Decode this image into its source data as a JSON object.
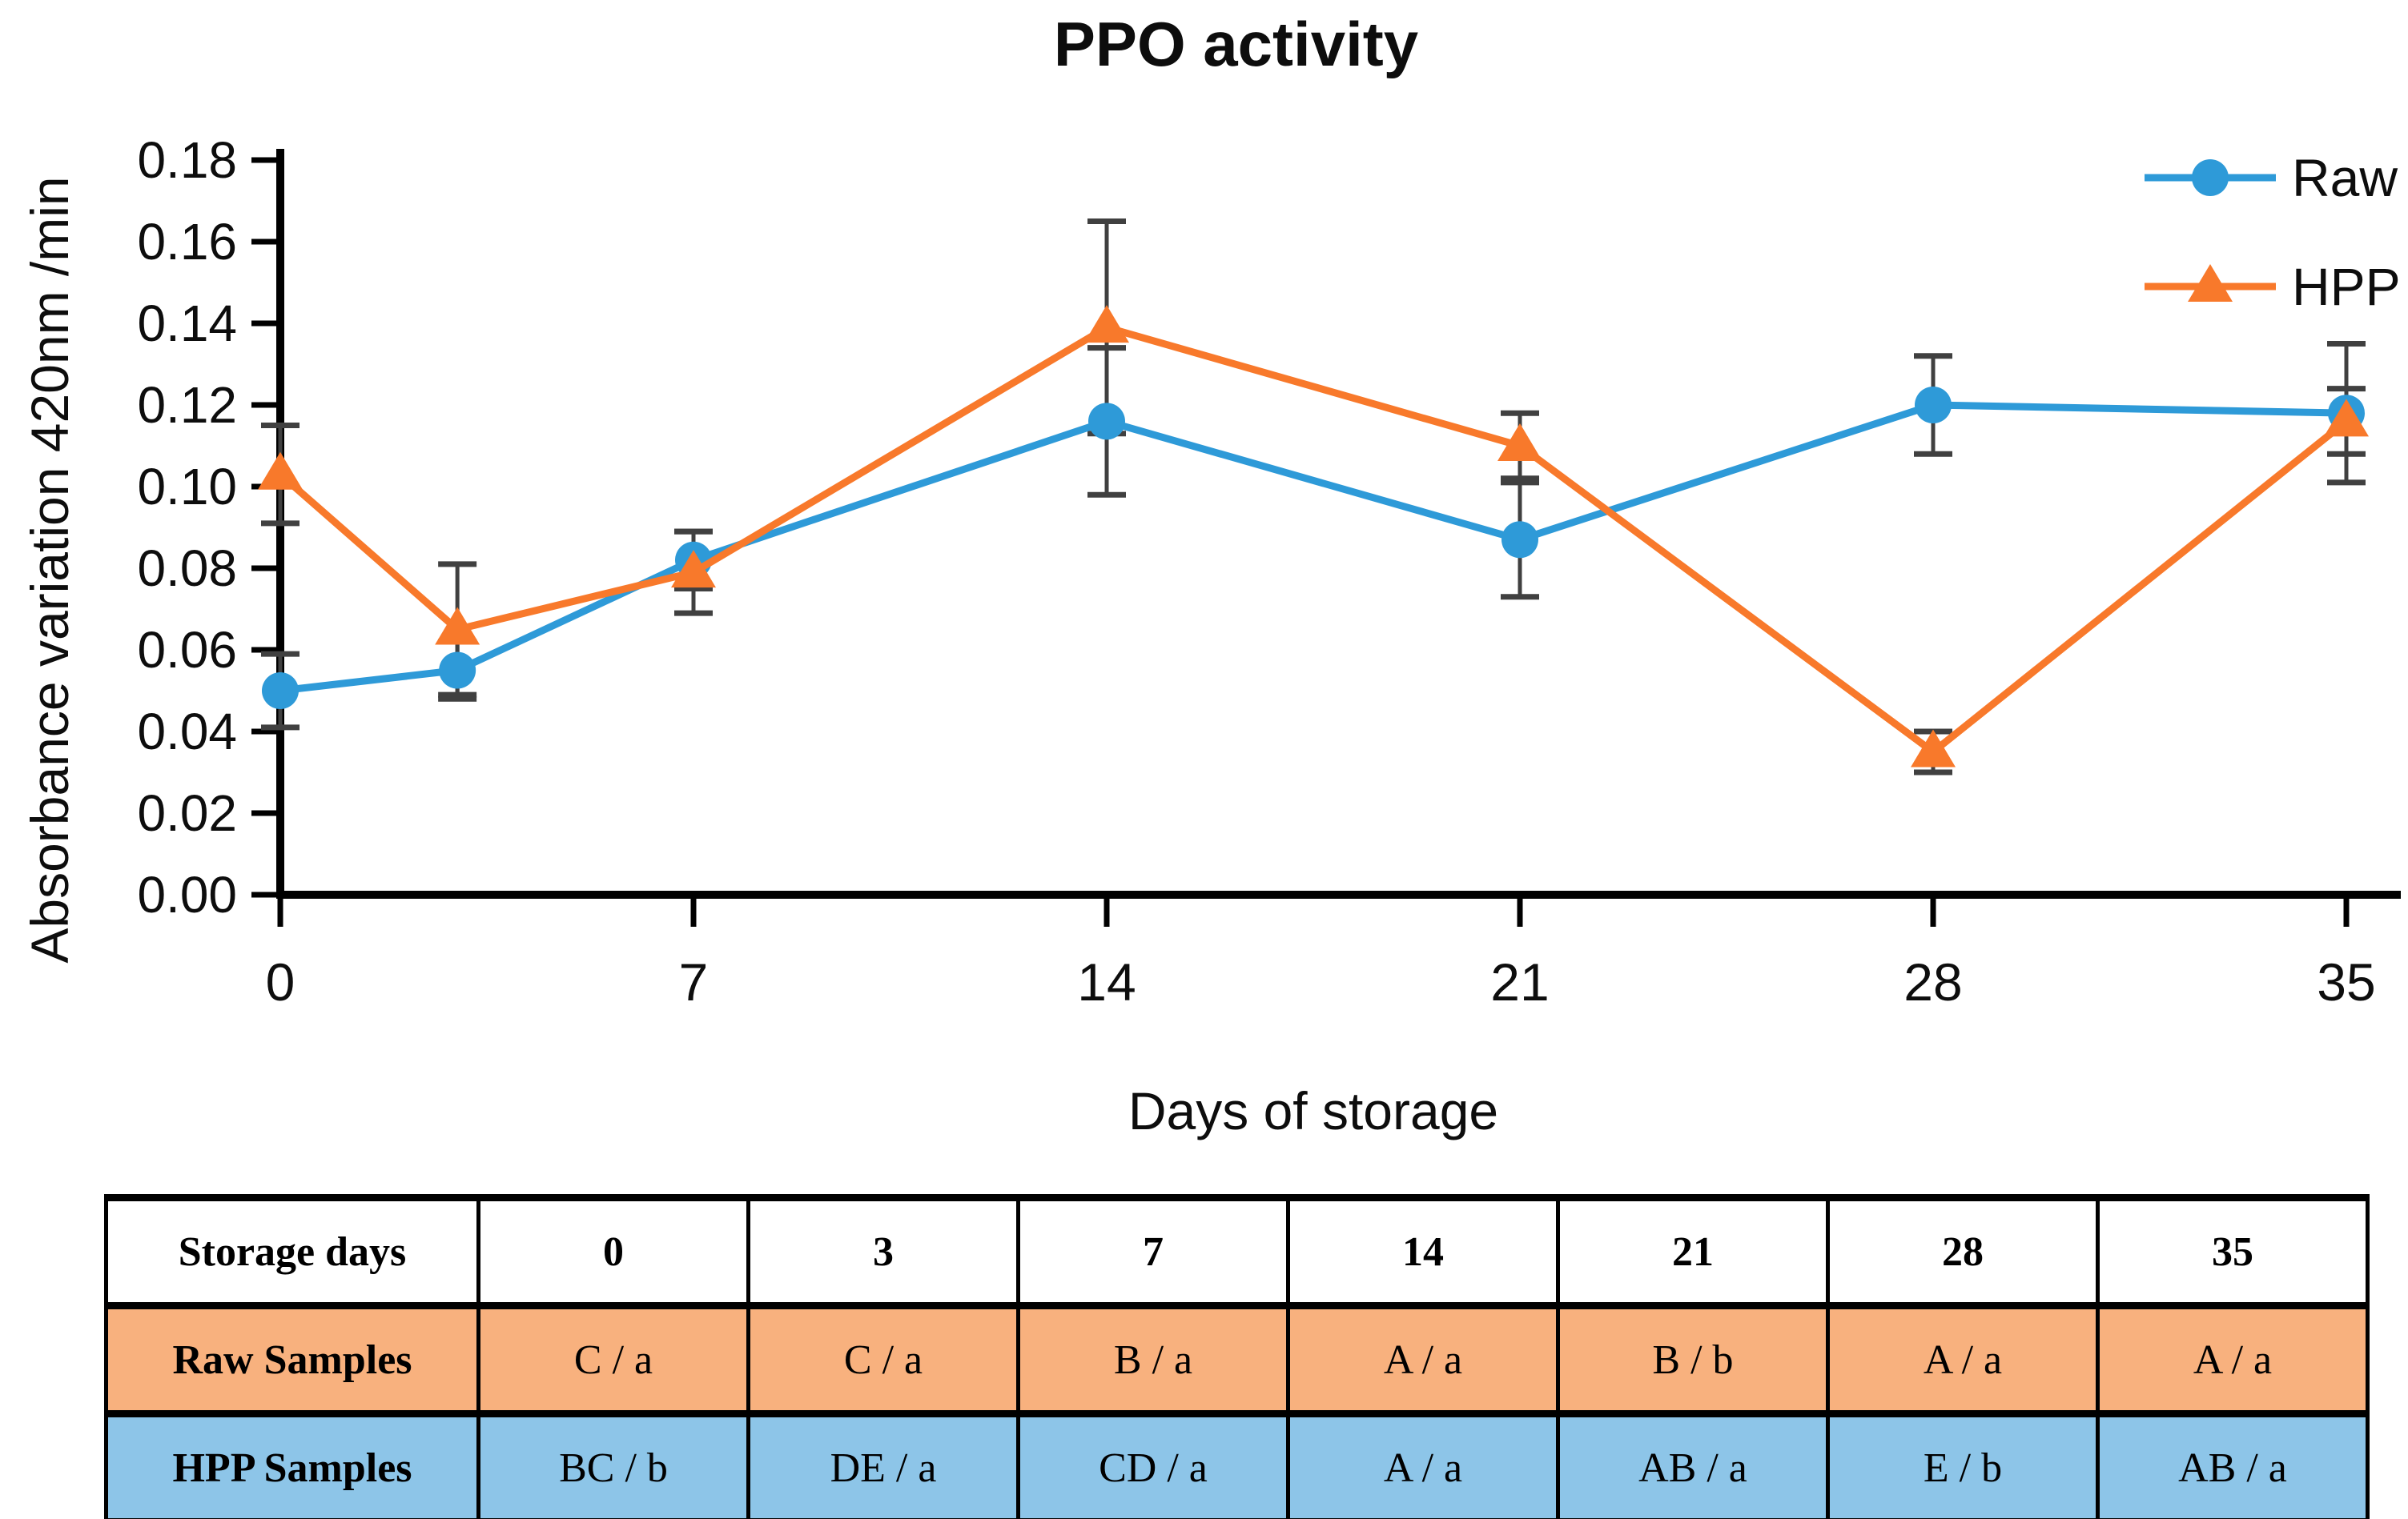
{
  "title": "PPO activity",
  "axes": {
    "x_title": "Days of storage",
    "y_title": "Absorbance variation 420nm /min",
    "y_tick_labels": [
      "0.00",
      "0.02",
      "0.04",
      "0.06",
      "0.08",
      "0.10",
      "0.12",
      "0.14",
      "0.16",
      "0.18"
    ],
    "x_tick_labels": [
      "0",
      "7",
      "14",
      "21",
      "28",
      "35"
    ]
  },
  "legend": {
    "items": [
      {
        "label": "Raw"
      },
      {
        "label": "HPP"
      }
    ]
  },
  "colors": {
    "raw_series": "#2E9AD8",
    "hpp_series": "#F8792B",
    "error_bar": "#404040",
    "axis": "#000000",
    "table_raw_row_bg": "#F8B17E",
    "table_hpp_row_bg": "#8DC5E8",
    "table_border": "#000000"
  },
  "chart_data": {
    "type": "line",
    "title": "PPO activity",
    "xlabel": "Days of storage",
    "ylabel": "Absorbance variation 420nm /min",
    "x": [
      0,
      3,
      7,
      14,
      21,
      28,
      35
    ],
    "x_ticks": [
      0,
      7,
      14,
      21,
      28,
      35
    ],
    "xlim": [
      0,
      35
    ],
    "ylim": [
      0,
      0.18
    ],
    "y_tick_step": 0.02,
    "grid": false,
    "legend_position": "top-right",
    "error_bars": true,
    "series": [
      {
        "name": "Raw",
        "marker": "circle",
        "color": "#2E9AD8",
        "values": [
          0.05,
          0.055,
          0.082,
          0.116,
          0.087,
          0.12,
          0.118
        ],
        "errors": [
          0.009,
          0.007,
          0.007,
          0.018,
          0.014,
          0.012,
          0.017
        ]
      },
      {
        "name": "HPP",
        "marker": "triangle",
        "color": "#F8792B",
        "values": [
          0.103,
          0.065,
          0.079,
          0.139,
          0.11,
          0.035,
          0.116
        ],
        "errors": [
          0.012,
          0.016,
          0.01,
          0.026,
          0.008,
          0.005,
          0.008
        ]
      }
    ]
  },
  "table": {
    "header": [
      "Storage days",
      "0",
      "3",
      "7",
      "14",
      "21",
      "28",
      "35"
    ],
    "rows": [
      {
        "label": "Raw Samples",
        "bg": "#F8B17E",
        "values": [
          "C / a",
          "C / a",
          "B / a",
          "A / a",
          "B / b",
          "A / a",
          "A / a"
        ]
      },
      {
        "label": "HPP Samples",
        "bg": "#8DC5E8",
        "values": [
          "BC / b",
          "DE / a",
          "CD / a",
          "A / a",
          "AB / a",
          "E / b",
          "AB / a"
        ]
      }
    ]
  }
}
